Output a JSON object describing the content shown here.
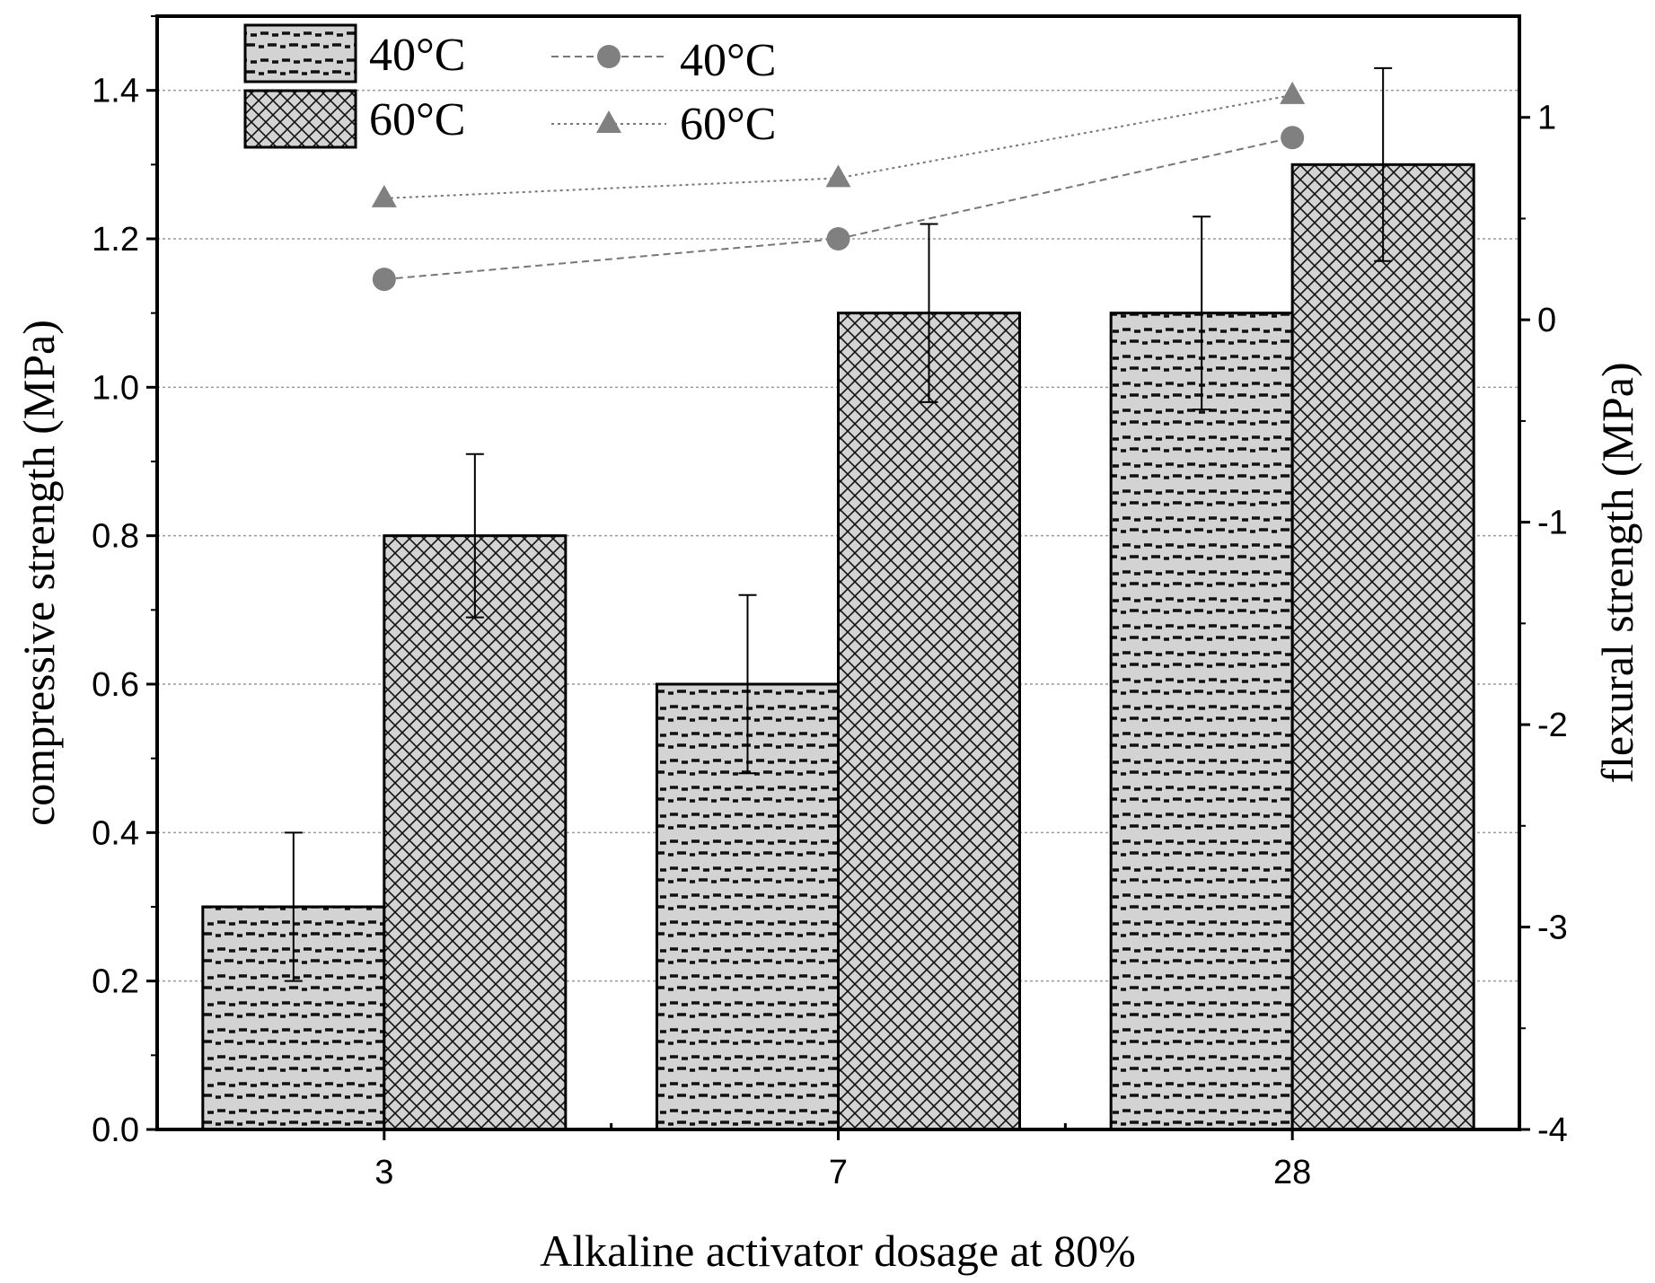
{
  "chart_data": {
    "type": "bar",
    "title": "",
    "categories": [
      "3",
      "7",
      "28"
    ],
    "xlabel": "Alkaline activator dosage at 80%",
    "ylabel": "compressive strength (MPa)",
    "ylabel_right": "flexural strength (MPa)",
    "ylim": [
      0,
      1.5
    ],
    "ylim_right": [
      -4,
      1.5
    ],
    "yticks": [
      "0.0",
      "0.2",
      "0.4",
      "0.6",
      "0.8",
      "1.0",
      "1.2",
      "1.4"
    ],
    "yticks_right": [
      "-4",
      "-3",
      "-2",
      "-1",
      "0",
      "1"
    ],
    "grid": true,
    "legend_position": "top-left",
    "bar_series": [
      {
        "name": "40°C",
        "values": [
          0.3,
          0.6,
          1.1
        ],
        "errors": [
          0.1,
          0.12,
          0.13
        ],
        "pattern": "dash"
      },
      {
        "name": "60°C",
        "values": [
          0.8,
          1.1,
          1.3
        ],
        "errors": [
          0.11,
          0.12,
          0.13
        ],
        "pattern": "crosshatch"
      }
    ],
    "line_series": [
      {
        "name": "40°C",
        "marker": "circle",
        "style": "dashed",
        "values": [
          0.2,
          0.4,
          0.9
        ]
      },
      {
        "name": "60°C",
        "marker": "triangle",
        "style": "dotted",
        "values": [
          0.6,
          0.7,
          1.11
        ]
      }
    ],
    "colors": {
      "bar_fill": "#d3d3d3",
      "line": "#777777",
      "marker": "#808080",
      "grid": "#9a9a9a"
    }
  }
}
